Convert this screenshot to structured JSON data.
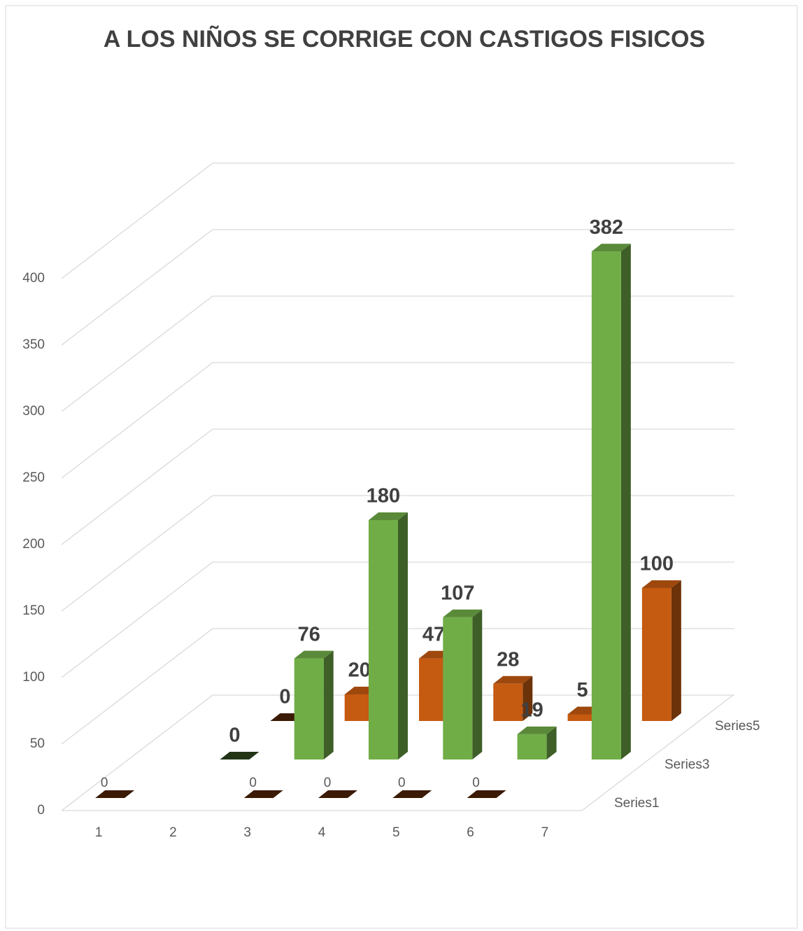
{
  "chart_data": {
    "type": "bar3d",
    "title": "A LOS NIÑOS SE CORRIGE CON CASTIGOS FISICOS",
    "categories": [
      "1",
      "2",
      "3",
      "4",
      "5",
      "6",
      "7"
    ],
    "series": [
      {
        "name": "Series1",
        "color": "#c55a11",
        "values": [
          0,
          null,
          0,
          0,
          0,
          0,
          null
        ]
      },
      {
        "name": "Series3",
        "color": "#70ad47",
        "values": [
          null,
          0,
          76,
          180,
          107,
          19,
          382
        ]
      },
      {
        "name": "Series5",
        "color": "#c55a11",
        "values": [
          null,
          0,
          20,
          47,
          28,
          5,
          100
        ]
      }
    ],
    "ylim": [
      0,
      400
    ],
    "yticks": [
      0,
      50,
      100,
      150,
      200,
      250,
      300,
      350,
      400
    ],
    "grid": true
  }
}
